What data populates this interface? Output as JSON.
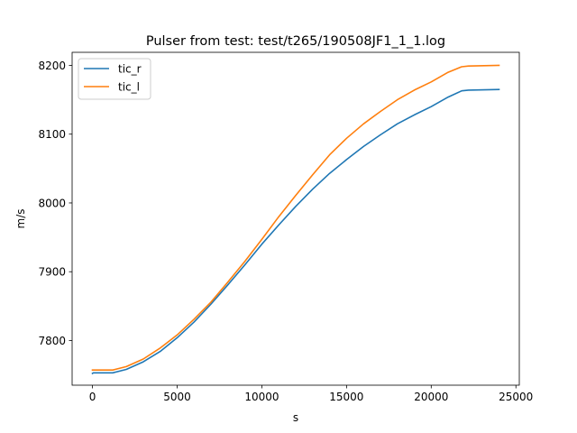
{
  "chart_data": {
    "type": "line",
    "title": "Pulser from test: test/t265/190508JF1_1_1.log",
    "xlabel": "s",
    "ylabel": "m/s",
    "xlim": [
      -1200,
      25200
    ],
    "ylim": [
      7735,
      8219
    ],
    "xticks": [
      0,
      5000,
      10000,
      15000,
      20000,
      25000
    ],
    "xtick_labels": [
      "0",
      "5000",
      "10000",
      "15000",
      "20000",
      "25000"
    ],
    "yticks": [
      7800,
      7900,
      8000,
      8100,
      8200
    ],
    "ytick_labels": [
      "7800",
      "7900",
      "8000",
      "8100",
      "8200"
    ],
    "grid": false,
    "legend_position": "upper-left",
    "series": [
      {
        "name": "tic_r",
        "color": "#1f77b4",
        "x": [
          0,
          50,
          1200,
          2000,
          3000,
          4000,
          5000,
          6000,
          7000,
          8000,
          9000,
          10000,
          11000,
          12000,
          13000,
          14000,
          15000,
          16000,
          17000,
          18000,
          19000,
          20000,
          21000,
          21800,
          22200,
          24000
        ],
        "y": [
          7752,
          7753,
          7753,
          7758,
          7769,
          7784,
          7804,
          7827,
          7853,
          7881,
          7910,
          7940,
          7968,
          7995,
          8020,
          8043,
          8063,
          8082,
          8099,
          8115,
          8128,
          8140,
          8154,
          8163,
          8164,
          8165
        ]
      },
      {
        "name": "tic_l",
        "color": "#ff7f0e",
        "x": [
          0,
          50,
          1200,
          2000,
          3000,
          4000,
          5000,
          6000,
          7000,
          8000,
          9000,
          10000,
          11000,
          12000,
          13000,
          14000,
          15000,
          16000,
          17000,
          18000,
          19000,
          20000,
          21000,
          21800,
          22200,
          24000
        ],
        "y": [
          7757,
          7757,
          7757,
          7762,
          7773,
          7789,
          7808,
          7831,
          7856,
          7885,
          7915,
          7947,
          7980,
          8011,
          8041,
          8070,
          8094,
          8115,
          8133,
          8150,
          8164,
          8176,
          8190,
          8198,
          8199,
          8200
        ]
      }
    ]
  }
}
